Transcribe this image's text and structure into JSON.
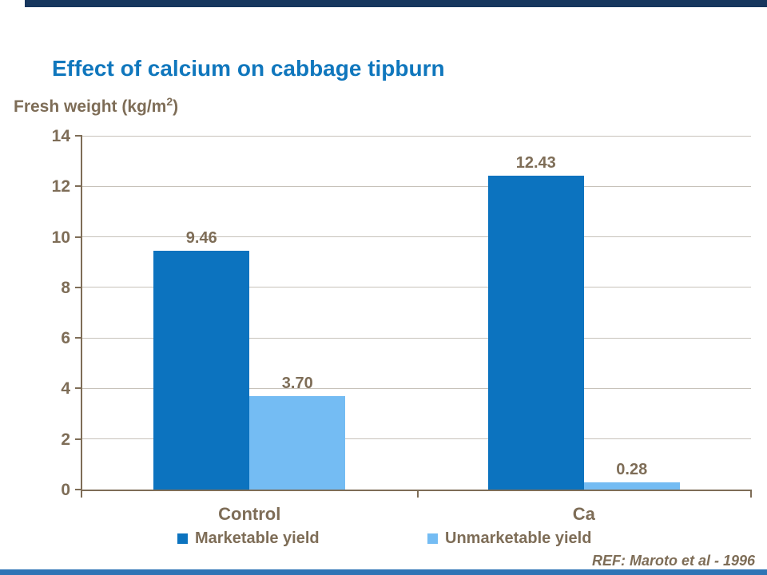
{
  "slide": {
    "title": "Effect of calcium on cabbage tipburn",
    "reference": "REF: Maroto et al - 1996",
    "top_bar_color": "#17375E",
    "bottom_bar_color": "#2E74B5",
    "title_color": "#1077BD",
    "text_color": "#7E6D57"
  },
  "chart_data": {
    "type": "bar",
    "title": "Effect of calcium on cabbage tipburn",
    "ylabel_prefix": "Fresh weight (kg/m",
    "ylabel_sup": "2",
    "ylabel_suffix": ")",
    "xlabel": "",
    "categories": [
      "Control",
      "Ca"
    ],
    "series": [
      {
        "name": "Marketable yield",
        "color": "#0C73BF",
        "values": [
          9.46,
          12.43
        ]
      },
      {
        "name": "Unmarketable yield",
        "color": "#74BCF3",
        "values": [
          3.7,
          0.28
        ]
      }
    ],
    "data_labels": [
      [
        "9.46",
        "12.43"
      ],
      [
        "3.70",
        "0.28"
      ]
    ],
    "ylim": [
      0,
      14
    ],
    "yticks": [
      0,
      2,
      4,
      6,
      8,
      10,
      12,
      14
    ],
    "grid": true,
    "grid_color": "#C7C2BA",
    "axis_color": "#7E6D57",
    "legend_position": "bottom"
  }
}
